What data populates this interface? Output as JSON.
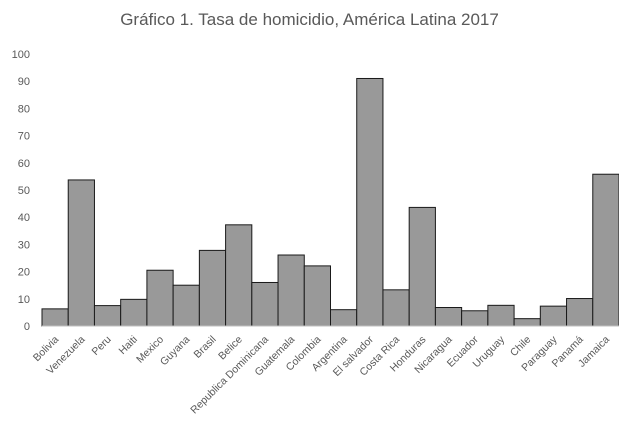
{
  "chart_data": {
    "type": "bar",
    "title": "Gráfico 1. Tasa de homicidio, América Latina 2017",
    "xlabel": "",
    "ylabel": "",
    "ylim": [
      0,
      100
    ],
    "yticks": [
      0,
      10,
      20,
      30,
      40,
      50,
      60,
      70,
      80,
      90,
      100
    ],
    "grid": false,
    "categories": [
      "Bolivia",
      "Venezuela",
      "Peru",
      "Haiti",
      "Mexico",
      "Guyana",
      "Brasil",
      "Belice",
      "Republica Dominicana",
      "Guatemala",
      "Colombia",
      "Argentina",
      "El salvador",
      "Costa Rica",
      "Honduras",
      "Nicaragua",
      "Ecuador",
      "Uruguay",
      "Chile",
      "Paraguay",
      "Panamá",
      "Jamaica"
    ],
    "values": [
      6.3,
      53.7,
      7.5,
      9.8,
      20.5,
      15,
      27.8,
      37.2,
      16,
      26.1,
      22.1,
      6,
      91,
      13.3,
      43.6,
      6.8,
      5.6,
      7.6,
      2.7,
      7.3,
      10.1,
      55.8
    ],
    "bar_color": "#999999",
    "bar_edge_color": "#1a1a1a"
  }
}
